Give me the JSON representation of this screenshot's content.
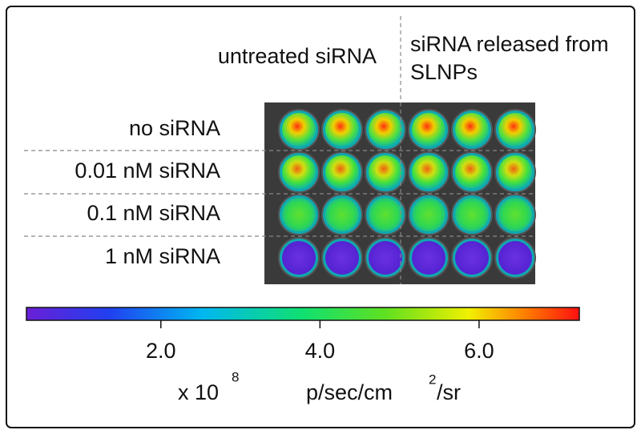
{
  "columns": [
    "untreated siRNA",
    "siRNA released from SLNPs"
  ],
  "rows": [
    "no  siRNA",
    "0.01 nM siRNA",
    "0.1 nM siRNA",
    "1 nM siRNA"
  ],
  "colorbar": {
    "range": [
      0.31,
      7.26
    ],
    "ticks": [
      {
        "value": 2,
        "label": "2.0"
      },
      {
        "value": 4,
        "label": "4.0"
      },
      {
        "value": 6,
        "label": "6.0"
      }
    ],
    "multiplier": "x 10",
    "exponent": "8",
    "unit": "p/sec/cm",
    "unit_exponent": "2",
    "unit_suffix": "/sr"
  }
}
